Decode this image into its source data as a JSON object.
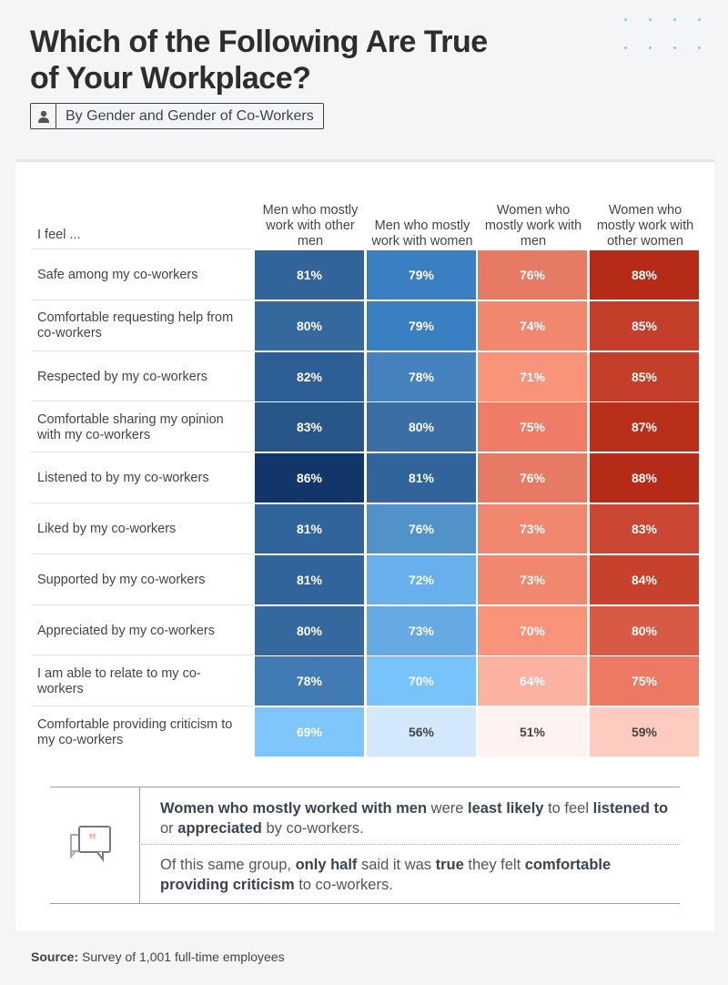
{
  "title_line1": "Which of the Following Are True",
  "title_line2": "of Your Workplace?",
  "subtitle": "By Gender and Gender of Co-Workers",
  "subtitle_icon": "person-icon",
  "chart_data": {
    "type": "heatmap",
    "row_header": "I feel ...",
    "columns": [
      "Men who mostly work with other men",
      "Men who mostly work with women",
      "Women who mostly work with men",
      "Women who mostly work with other women"
    ],
    "rows": [
      "Safe among my co-workers",
      "Comfortable requesting help from co-workers",
      "Respected by my co-workers",
      "Comfortable sharing my opinion with my co-workers",
      "Listened to by my co-workers",
      "Liked by my co-workers",
      "Supported by my co-workers",
      "Appreciated by my co-workers",
      "I am able to relate to my co-workers",
      "Comfortable providing criticism to my co-workers"
    ],
    "values": [
      [
        81,
        79,
        76,
        88
      ],
      [
        80,
        79,
        74,
        85
      ],
      [
        82,
        78,
        71,
        85
      ],
      [
        83,
        80,
        75,
        87
      ],
      [
        86,
        81,
        76,
        88
      ],
      [
        81,
        76,
        73,
        83
      ],
      [
        81,
        72,
        73,
        84
      ],
      [
        80,
        73,
        70,
        80
      ],
      [
        78,
        70,
        64,
        75
      ],
      [
        69,
        56,
        51,
        59
      ]
    ],
    "unit": "%",
    "colors": [
      [
        "#31649a",
        "#3a7fc2",
        "#e77a65",
        "#b52b17"
      ],
      [
        "#35689d",
        "#3a7fc2",
        "#f2876f",
        "#c43e2a"
      ],
      [
        "#2d5e96",
        "#4582be",
        "#f99379",
        "#c43e2a"
      ],
      [
        "#285689",
        "#3a6ea4",
        "#ee7c66",
        "#b82f1a"
      ],
      [
        "#12366a",
        "#31649a",
        "#e77a65",
        "#b52b17"
      ],
      [
        "#31649a",
        "#5192c9",
        "#f2876f",
        "#cb4633"
      ],
      [
        "#31649a",
        "#68b0ec",
        "#f2876f",
        "#c7412d"
      ],
      [
        "#35699e",
        "#65aae5",
        "#f99379",
        "#d75a44"
      ],
      [
        "#427bb3",
        "#78c2fd",
        "#fcb2a1",
        "#ec7962"
      ],
      [
        "#7ec6fc",
        "#d3e8fc",
        "#fff2f0",
        "#fdcbc0"
      ]
    ]
  },
  "note_icon": "quote-bubbles-icon",
  "note": {
    "p1": [
      [
        "b",
        "Women who mostly worked with men"
      ],
      [
        "t",
        " were "
      ],
      [
        "b",
        "least likely"
      ],
      [
        "t",
        " to feel "
      ],
      [
        "b",
        "listened to"
      ],
      [
        "t",
        " or "
      ],
      [
        "b",
        "appreciated"
      ],
      [
        "t",
        " by co-workers."
      ]
    ],
    "p2": [
      [
        "t",
        "Of this same group, "
      ],
      [
        "b",
        "only half"
      ],
      [
        "t",
        " said it was "
      ],
      [
        "b",
        "true"
      ],
      [
        "t",
        " they felt "
      ],
      [
        "b",
        "comfortable providing criticism"
      ],
      [
        "t",
        " to co-workers."
      ]
    ]
  },
  "source_label": "Source:",
  "source_text": " Survey of 1,001 full-time employees"
}
